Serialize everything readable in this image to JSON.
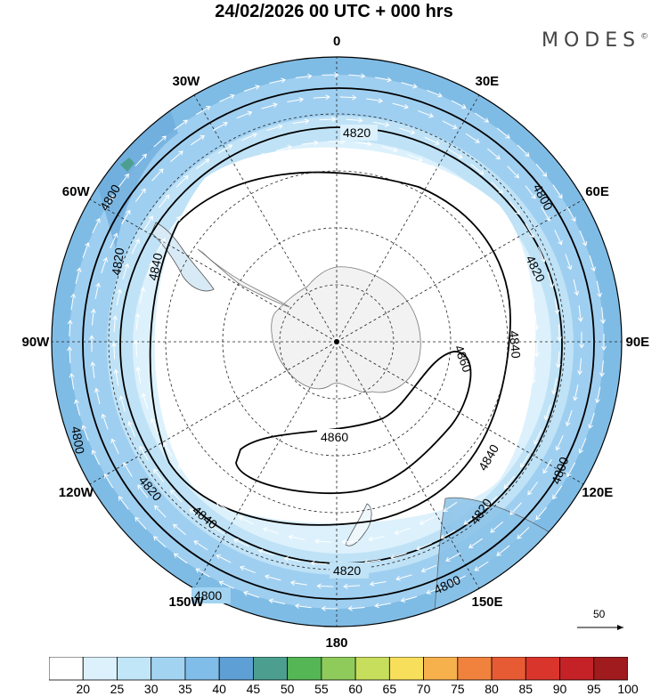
{
  "title": "24/02/2026  00 UTC  + 000 hrs",
  "brand": "MODES",
  "brand_mark": "©",
  "longitude_labels": [
    {
      "key": "lon-0",
      "text": "0",
      "deg": 0
    },
    {
      "key": "lon-30e",
      "text": "30E",
      "deg": 30
    },
    {
      "key": "lon-60e",
      "text": "60E",
      "deg": 60
    },
    {
      "key": "lon-90e",
      "text": "90E",
      "deg": 90
    },
    {
      "key": "lon-120e",
      "text": "120E",
      "deg": 120
    },
    {
      "key": "lon-150e",
      "text": "150E",
      "deg": 150
    },
    {
      "key": "lon-180",
      "text": "180",
      "deg": 180
    },
    {
      "key": "lon-150w",
      "text": "150W",
      "deg": 210
    },
    {
      "key": "lon-120w",
      "text": "120W",
      "deg": 240
    },
    {
      "key": "lon-90w",
      "text": "90W",
      "deg": 270
    },
    {
      "key": "lon-60w",
      "text": "60W",
      "deg": 300
    },
    {
      "key": "lon-30w",
      "text": "30W",
      "deg": 330
    }
  ],
  "contour_labels": [
    "4800",
    "4820",
    "4840",
    "4860"
  ],
  "reference_vector": {
    "value": "50"
  },
  "colorbar": {
    "values": [
      "20",
      "25",
      "30",
      "35",
      "40",
      "45",
      "50",
      "55",
      "60",
      "65",
      "70",
      "75",
      "80",
      "85",
      "90",
      "95",
      "100"
    ],
    "colors": [
      "#ffffff",
      "#dcf1fc",
      "#c1e6f8",
      "#a2d3f1",
      "#80bde8",
      "#5e9fd6",
      "#4c9f8f",
      "#55b655",
      "#8fcb5b",
      "#c7dd5c",
      "#f7df5c",
      "#f6b04c",
      "#f0823e",
      "#e65a34",
      "#d9352c",
      "#c42226",
      "#a01b1e"
    ]
  }
}
